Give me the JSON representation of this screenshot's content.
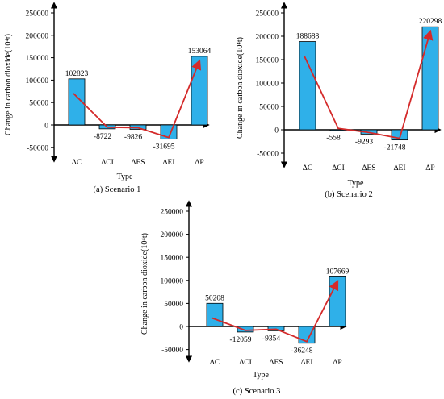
{
  "colors": {
    "bar": "#2fb0e9",
    "bar_stroke": "#000000",
    "trend_line": "#d42a2a",
    "axis": "#000000"
  },
  "chart_data": [
    {
      "type": "bar",
      "caption": "(a) Scenario 1",
      "categories": [
        "ΔC",
        "ΔCI",
        "ΔES",
        "ΔEI",
        "ΔP"
      ],
      "values": [
        102823,
        -8722,
        -9826,
        -31695,
        153064
      ],
      "value_labels": [
        "102823",
        "-8722",
        "-9826",
        "-31695",
        "153064"
      ],
      "xlabel": "Type",
      "ylabel": "Change in carbon dioxide(10⁴t)",
      "ylim": [
        -50000,
        250000
      ],
      "yticks": [
        -50000,
        0,
        50000,
        100000,
        150000,
        200000,
        250000
      ],
      "ytick_labels": [
        "-50000",
        "0",
        "50000",
        "100000",
        "150000",
        "200000",
        "250000"
      ],
      "trend_line": true,
      "grid": false
    },
    {
      "type": "bar",
      "caption": "(b) Scenario 2",
      "categories": [
        "ΔC",
        "ΔCI",
        "ΔES",
        "ΔEI",
        "ΔP"
      ],
      "values": [
        188688,
        -558,
        -9293,
        -21748,
        220298
      ],
      "value_labels": [
        "188688",
        "-558",
        "-9293",
        "-21748",
        "220298"
      ],
      "xlabel": "Type",
      "ylabel": "Change in carbon dioxide(10⁴t)",
      "ylim": [
        -50000,
        250000
      ],
      "yticks": [
        -50000,
        0,
        50000,
        100000,
        150000,
        200000,
        250000
      ],
      "ytick_labels": [
        "-50000",
        "0",
        "50000",
        "100000",
        "150000",
        "200000",
        "250000"
      ],
      "trend_line": true,
      "grid": false
    },
    {
      "type": "bar",
      "caption": "(c) Scenario 3",
      "categories": [
        "ΔC",
        "ΔCI",
        "ΔES",
        "ΔEI",
        "ΔP"
      ],
      "values": [
        50208,
        -12059,
        -9354,
        -36248,
        107669
      ],
      "value_labels": [
        "50208",
        "-12059",
        "-9354",
        "-36248",
        "107669"
      ],
      "xlabel": "Type",
      "ylabel": "Change in carbon dioxide(10⁴t)",
      "ylim": [
        -50000,
        250000
      ],
      "yticks": [
        -50000,
        0,
        50000,
        100000,
        150000,
        200000,
        250000
      ],
      "ytick_labels": [
        "-50000",
        "0",
        "50000",
        "100000",
        "150000",
        "200000",
        "250000"
      ],
      "trend_line": true,
      "grid": false
    }
  ]
}
